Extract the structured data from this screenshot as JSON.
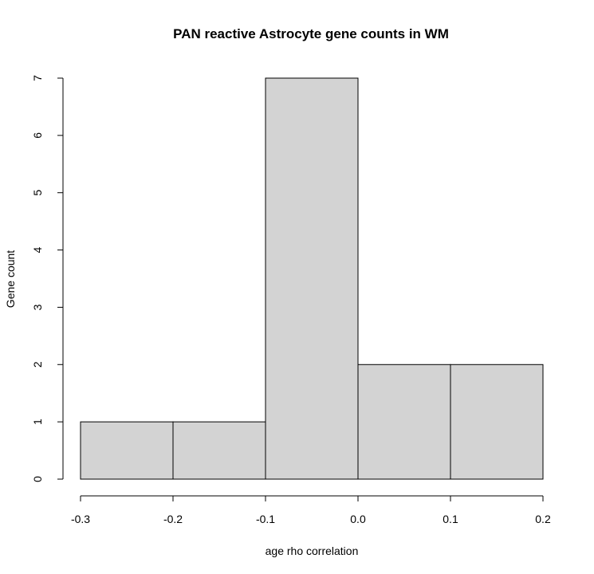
{
  "chart_data": {
    "type": "bar",
    "title": "PAN reactive Astrocyte gene counts in WM",
    "xlabel": "age rho correlation",
    "ylabel": "Gene count",
    "bins": [
      {
        "start": -0.3,
        "end": -0.2,
        "count": 1
      },
      {
        "start": -0.2,
        "end": -0.1,
        "count": 1
      },
      {
        "start": -0.1,
        "end": 0.0,
        "count": 7
      },
      {
        "start": 0.0,
        "end": 0.1,
        "count": 2
      },
      {
        "start": 0.1,
        "end": 0.2,
        "count": 2
      }
    ],
    "xlim": [
      -0.3,
      0.2
    ],
    "ylim": [
      0,
      7
    ],
    "x_ticks": [
      -0.3,
      -0.2,
      -0.1,
      0.0,
      0.1,
      0.2
    ],
    "x_tick_labels": [
      "-0.3",
      "-0.2",
      "-0.1",
      "0.0",
      "0.1",
      "0.2"
    ],
    "y_ticks": [
      0,
      1,
      2,
      3,
      4,
      5,
      6,
      7
    ],
    "y_tick_labels": [
      "0",
      "1",
      "2",
      "3",
      "4",
      "5",
      "6",
      "7"
    ],
    "grid": false,
    "bar_color": "#d3d3d3",
    "edge_color": "#000000"
  }
}
